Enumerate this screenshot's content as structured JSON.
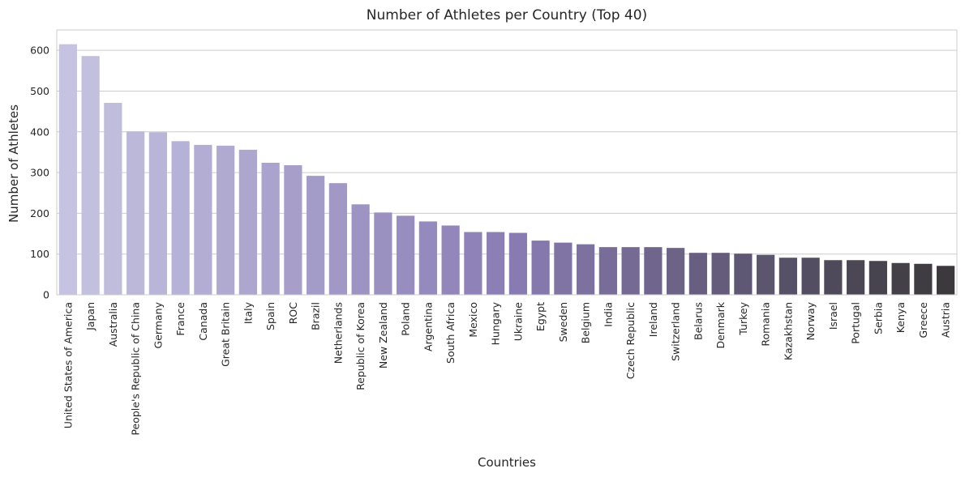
{
  "chart_data": {
    "type": "bar",
    "title": "Number of Athletes per Country (Top 40)",
    "xlabel": "Countries",
    "ylabel": "Number of Athletes",
    "ylim": [
      0,
      650
    ],
    "yticks": [
      0,
      100,
      200,
      300,
      400,
      500,
      600
    ],
    "grid": "horizontal",
    "categories": [
      "United States of America",
      "Japan",
      "Australia",
      "People's Republic of China",
      "Germany",
      "France",
      "Canada",
      "Great Britain",
      "Italy",
      "Spain",
      "ROC",
      "Brazil",
      "Netherlands",
      "Republic of Korea",
      "New Zealand",
      "Poland",
      "Argentina",
      "South Africa",
      "Mexico",
      "Hungary",
      "Ukraine",
      "Egypt",
      "Sweden",
      "Belgium",
      "India",
      "Czech Republic",
      "Ireland",
      "Switzerland",
      "Belarus",
      "Denmark",
      "Turkey",
      "Romania",
      "Kazakhstan",
      "Norway",
      "Israel",
      "Portugal",
      "Serbia",
      "Kenya",
      "Greece",
      "Austria"
    ],
    "values": [
      615,
      586,
      471,
      401,
      399,
      377,
      368,
      366,
      356,
      324,
      318,
      292,
      274,
      222,
      202,
      194,
      180,
      170,
      154,
      154,
      152,
      133,
      128,
      124,
      117,
      117,
      117,
      115,
      103,
      103,
      101,
      98,
      91,
      91,
      85,
      85,
      83,
      78,
      76,
      71
    ],
    "palette": {
      "start": "#c5c3e1",
      "mid": "#8a7db5",
      "end": "#3b393c"
    }
  }
}
